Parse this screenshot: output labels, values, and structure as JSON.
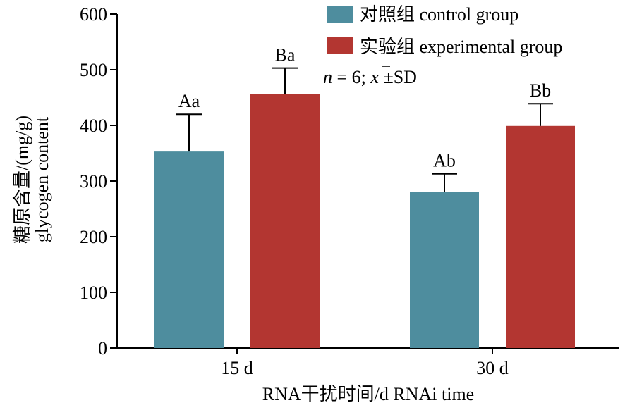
{
  "chart_data": {
    "type": "bar",
    "categories": [
      "15 d",
      "30 d"
    ],
    "series": [
      {
        "name": "对照组 control group",
        "values": [
          353,
          280
        ],
        "sd": [
          67,
          33
        ],
        "labels": [
          "Aa",
          "Ab"
        ],
        "color": "#4e8d9e"
      },
      {
        "name": "实验组 experimental group",
        "values": [
          456,
          399
        ],
        "sd": [
          47,
          40
        ],
        "labels": [
          "Ba",
          "Bb"
        ],
        "color": "#b33631"
      }
    ],
    "ylim": [
      0,
      600
    ],
    "yticks": [
      0,
      100,
      200,
      300,
      400,
      500,
      600
    ],
    "ylabel_lines": [
      "糖原含量/(mg/g)",
      "glycogen content"
    ],
    "xlabel": "RNA干扰时间/d RNAi time",
    "legend_placement": "top-right",
    "note": {
      "n": "n",
      "rest": " = 6; ",
      "xbar": "x",
      "tail": " ±SD"
    },
    "grid": false
  }
}
